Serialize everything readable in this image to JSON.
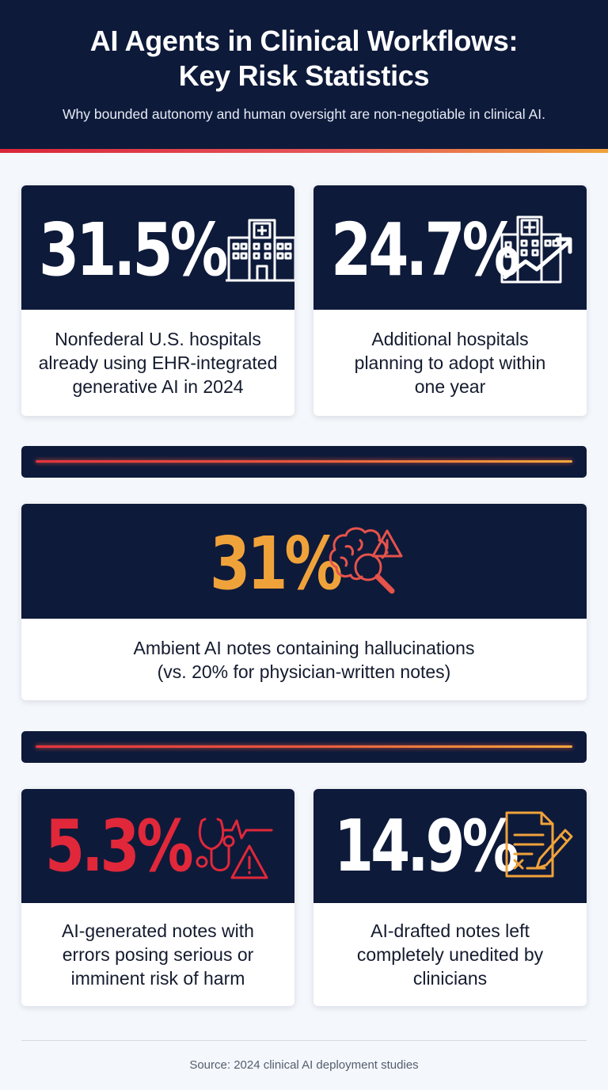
{
  "header": {
    "title_line1": "AI Agents in Clinical Workflows:",
    "title_line2": "Key Risk Statistics",
    "subtitle": "Why bounded autonomy and human oversight are non-negotiable in clinical AI."
  },
  "stats": [
    {
      "value": "31.5%",
      "line1": "Nonfederal U.S. hospitals",
      "line2": "already using EHR-integrated",
      "line3": "generative AI in 2024",
      "icon": "hospital-icon",
      "color": "#ffffff"
    },
    {
      "value": "24.7%",
      "line1": "Additional hospitals",
      "line2": "planning to adopt within",
      "line3": "one year",
      "icon": "hospital-growth-icon",
      "color": "#ffffff"
    },
    {
      "value": "31%",
      "line1": "Ambient AI notes containing hallucinations",
      "line2": "(vs. 20% for physician-written notes)",
      "icon": "brain-magnifier-warning-icon",
      "color": "#f0a23a"
    },
    {
      "value": "5.3%",
      "line1": "AI-generated notes with",
      "line2": "errors posing serious or",
      "line3": "imminent risk of harm",
      "icon": "stethoscope-warning-icon",
      "color": "#e0283a"
    },
    {
      "value": "14.9%",
      "line1": "AI-drafted notes left",
      "line2": "completely unedited by",
      "line3": "clinicians",
      "icon": "document-pen-icon",
      "color": "#ffffff"
    }
  ],
  "footer": {
    "source": "Source: 2024 clinical AI deployment studies"
  }
}
